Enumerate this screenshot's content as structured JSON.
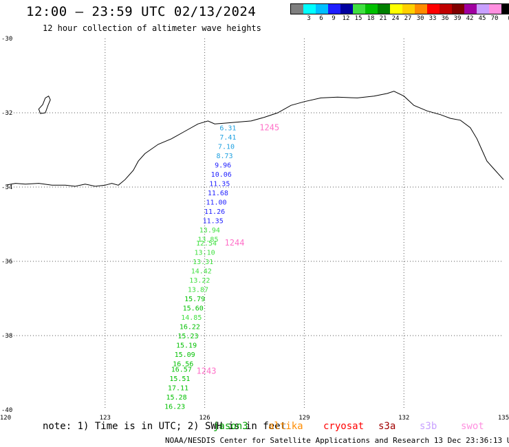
{
  "header": {
    "title": "12:00 – 23:59 UTC 02/13/2024",
    "subtitle": "12 hour collection of altimeter wave heights"
  },
  "colorbar": {
    "unit": "(ft)",
    "swatches": [
      {
        "color": "#7f7f7f",
        "label": ""
      },
      {
        "color": "#00ffff",
        "label": "3"
      },
      {
        "color": "#00bfff",
        "label": "6"
      },
      {
        "color": "#1e1eff",
        "label": "9"
      },
      {
        "color": "#0000a0",
        "label": "12"
      },
      {
        "color": "#40e040",
        "label": "15"
      },
      {
        "color": "#00c000",
        "label": "18"
      },
      {
        "color": "#008000",
        "label": "21"
      },
      {
        "color": "#ffff00",
        "label": "24"
      },
      {
        "color": "#ffd000",
        "label": "27"
      },
      {
        "color": "#ff8c00",
        "label": "30"
      },
      {
        "color": "#ff0000",
        "label": "33"
      },
      {
        "color": "#c00000",
        "label": "36"
      },
      {
        "color": "#800000",
        "label": "39"
      },
      {
        "color": "#a000a0",
        "label": "42"
      },
      {
        "color": "#c8a0ff",
        "label": "45"
      },
      {
        "color": "#ff90e0",
        "label": "70"
      },
      {
        "color": "#000000",
        "label": ""
      }
    ]
  },
  "axes": {
    "lon_labels": [
      "120",
      "123",
      "126",
      "129",
      "132",
      "135"
    ],
    "lat_labels": [
      "-30",
      "-32",
      "-34",
      "-36",
      "-38",
      "-40"
    ],
    "lon_range": [
      120,
      135
    ],
    "lat_range": [
      -30,
      -40
    ]
  },
  "swh_points": [
    {
      "text": "6.31",
      "lon": 126.7,
      "lat": -32.4,
      "color": "#1ea0e0"
    },
    {
      "text": "7.41",
      "lon": 126.7,
      "lat": -32.65,
      "color": "#1ea0e0"
    },
    {
      "text": "7.10",
      "lon": 126.65,
      "lat": -32.9,
      "color": "#1ea0e0"
    },
    {
      "text": "8.73",
      "lon": 126.6,
      "lat": -33.15,
      "color": "#1ea0e0"
    },
    {
      "text": "9.96",
      "lon": 126.55,
      "lat": -33.4,
      "color": "#1e1eff"
    },
    {
      "text": "10.06",
      "lon": 126.5,
      "lat": -33.65,
      "color": "#1e1eff"
    },
    {
      "text": "11.35",
      "lon": 126.45,
      "lat": -33.9,
      "color": "#1e1eff"
    },
    {
      "text": "11.68",
      "lon": 126.4,
      "lat": -34.15,
      "color": "#1e1eff"
    },
    {
      "text": "11.00",
      "lon": 126.35,
      "lat": -34.4,
      "color": "#1e1eff"
    },
    {
      "text": "11.26",
      "lon": 126.3,
      "lat": -34.65,
      "color": "#1e1eff"
    },
    {
      "text": "11.35",
      "lon": 126.25,
      "lat": -34.9,
      "color": "#1e1eff"
    },
    {
      "text": "13.94",
      "lon": 126.15,
      "lat": -35.15,
      "color": "#40e040"
    },
    {
      "text": "13.85",
      "lon": 126.1,
      "lat": -35.4,
      "color": "#40e040"
    },
    {
      "text": "12.54",
      "lon": 126.05,
      "lat": -35.5,
      "color": "#40e040"
    },
    {
      "text": "13.10",
      "lon": 126.0,
      "lat": -35.75,
      "color": "#40e040"
    },
    {
      "text": "13.31",
      "lon": 125.95,
      "lat": -36.0,
      "color": "#40e040"
    },
    {
      "text": "14.42",
      "lon": 125.9,
      "lat": -36.25,
      "color": "#40e040"
    },
    {
      "text": "13.22",
      "lon": 125.85,
      "lat": -36.5,
      "color": "#40e040"
    },
    {
      "text": "13.87",
      "lon": 125.8,
      "lat": -36.75,
      "color": "#40e040"
    },
    {
      "text": "15.79",
      "lon": 125.7,
      "lat": -37.0,
      "color": "#00c000"
    },
    {
      "text": "15.60",
      "lon": 125.65,
      "lat": -37.25,
      "color": "#00c000"
    },
    {
      "text": "14.85",
      "lon": 125.6,
      "lat": -37.5,
      "color": "#40e040"
    },
    {
      "text": "16.22",
      "lon": 125.55,
      "lat": -37.75,
      "color": "#00c000"
    },
    {
      "text": "15.23",
      "lon": 125.5,
      "lat": -38.0,
      "color": "#00c000"
    },
    {
      "text": "15.19",
      "lon": 125.45,
      "lat": -38.25,
      "color": "#00c000"
    },
    {
      "text": "15.09",
      "lon": 125.4,
      "lat": -38.5,
      "color": "#00c000"
    },
    {
      "text": "16.56",
      "lon": 125.35,
      "lat": -38.75,
      "color": "#00c000"
    },
    {
      "text": "16.57",
      "lon": 125.3,
      "lat": -38.9,
      "color": "#00c000"
    },
    {
      "text": "15.51",
      "lon": 125.25,
      "lat": -39.15,
      "color": "#00c000"
    },
    {
      "text": "17.11",
      "lon": 125.2,
      "lat": -39.4,
      "color": "#00c000"
    },
    {
      "text": "15.28",
      "lon": 125.15,
      "lat": -39.65,
      "color": "#00c000"
    },
    {
      "text": "16.23",
      "lon": 125.1,
      "lat": -39.9,
      "color": "#00c000"
    }
  ],
  "orbit_labels": [
    {
      "text": "1245",
      "lon": 127.65,
      "lat": -32.4,
      "color": "#ff70c8"
    },
    {
      "text": "1244",
      "lon": 126.6,
      "lat": -35.5,
      "color": "#ff70c8"
    },
    {
      "text": "1243",
      "lon": 125.75,
      "lat": -38.95,
      "color": "#ff70c8"
    }
  ],
  "coastline_lonlat": [
    [
      120.0,
      -33.95
    ],
    [
      120.3,
      -33.9
    ],
    [
      120.6,
      -33.92
    ],
    [
      121.0,
      -33.9
    ],
    [
      121.4,
      -33.95
    ],
    [
      121.8,
      -33.95
    ],
    [
      122.1,
      -33.98
    ],
    [
      122.4,
      -33.92
    ],
    [
      122.7,
      -33.98
    ],
    [
      123.0,
      -33.95
    ],
    [
      123.2,
      -33.9
    ],
    [
      123.4,
      -33.95
    ],
    [
      123.6,
      -33.8
    ],
    [
      123.85,
      -33.55
    ],
    [
      124.0,
      -33.3
    ],
    [
      124.2,
      -33.1
    ],
    [
      124.6,
      -32.85
    ],
    [
      125.0,
      -32.7
    ],
    [
      125.4,
      -32.5
    ],
    [
      125.8,
      -32.3
    ],
    [
      126.1,
      -32.22
    ],
    [
      126.3,
      -32.3
    ],
    [
      126.6,
      -32.28
    ],
    [
      127.0,
      -32.25
    ],
    [
      127.4,
      -32.22
    ],
    [
      127.8,
      -32.12
    ],
    [
      128.2,
      -32.0
    ],
    [
      128.6,
      -31.8
    ],
    [
      129.0,
      -31.7
    ],
    [
      129.5,
      -31.6
    ],
    [
      130.0,
      -31.58
    ],
    [
      130.6,
      -31.6
    ],
    [
      131.1,
      -31.55
    ],
    [
      131.5,
      -31.48
    ],
    [
      131.7,
      -31.42
    ],
    [
      132.0,
      -31.55
    ],
    [
      132.3,
      -31.8
    ],
    [
      132.7,
      -31.95
    ],
    [
      133.1,
      -32.05
    ],
    [
      133.4,
      -32.15
    ],
    [
      133.7,
      -32.2
    ],
    [
      134.0,
      -32.4
    ],
    [
      134.2,
      -32.7
    ],
    [
      134.35,
      -33.0
    ],
    [
      134.5,
      -33.3
    ],
    [
      134.7,
      -33.5
    ],
    [
      134.9,
      -33.7
    ],
    [
      135.0,
      -33.8
    ]
  ],
  "island_lonlat": [
    [
      121.2,
      -31.6
    ],
    [
      121.3,
      -31.55
    ],
    [
      121.35,
      -31.65
    ],
    [
      121.28,
      -31.8
    ],
    [
      121.2,
      -32.0
    ],
    [
      121.05,
      -32.02
    ],
    [
      121.0,
      -31.9
    ],
    [
      121.12,
      -31.78
    ],
    [
      121.2,
      -31.6
    ]
  ],
  "notes": {
    "note_text": "note:  1) Time is in UTC; 2) SWH is in feet",
    "legend": [
      {
        "label": "jason3",
        "color": "#00a000"
      },
      {
        "label": "altika",
        "color": "#ff8c00"
      },
      {
        "label": "cryosat",
        "color": "#ff0000"
      },
      {
        "label": "s3a",
        "color": "#a00000"
      },
      {
        "label": "s3b",
        "color": "#c8a0ff"
      },
      {
        "label": "swot",
        "color": "#ff90e0"
      }
    ],
    "footer": "NOAA/NESDIS Center for Satellite Applications and Research    13 Dec 23:36:13 UTC 2024"
  }
}
